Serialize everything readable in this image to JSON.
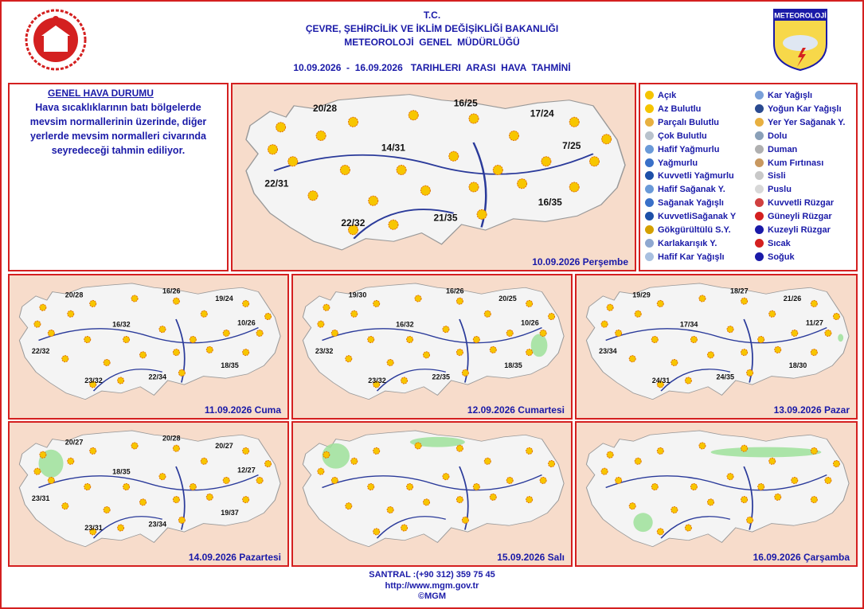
{
  "header": {
    "line1": "T.C.",
    "line2": "ÇEVRE, ŞEHİRCİLİK VE İKLİM DEĞİŞİKLİĞİ BAKANLIĞI",
    "line3": "METEOROLOJİ  GENEL  MÜDÜRLÜĞÜ",
    "period": "10.09.2026  -  16.09.2026   TARIHLERI  ARASI  HAVA  TAHMİNİ",
    "logo_text": "METEOROLOJİ"
  },
  "general": {
    "title": "GENEL HAVA DURUMU",
    "text": "Hava sıcaklıklarının batı bölgelerde mevsim normallerinin üzerinde, diğer yerlerde mevsim normalleri civarında seyredeceği tahmin ediliyor."
  },
  "legend": [
    "Açık",
    "Az Bulutlu",
    "Parçalı Bulutlu",
    "Çok Bulutlu",
    "Hafif Yağmurlu",
    "Yağmurlu",
    "Kuvvetli Yağmurlu",
    "Hafif Sağanak Y.",
    "Sağanak Yağışlı",
    "KuvvetliSağanak Y",
    "Gökgürültülü S.Y.",
    "Karlakarışık Y.",
    "Hafif Kar Yağışlı",
    "Kar Yağışlı",
    "Yoğun Kar Yağışlı",
    "Yer Yer Sağanak Y.",
    "Dolu",
    "Duman",
    "Kum Fırtınası",
    "Sisli",
    "Puslu",
    "Kuvvetli Rüzgar",
    "Güneyli Rüzgar",
    "Kuzeyli Rüzgar",
    "Sıcak",
    "Soğuk"
  ],
  "maps": [
    {
      "date": "10.09.2026 Perşembe",
      "temps": [
        "20/28",
        "16/25",
        "17/24",
        "14/31",
        "7/25",
        "22/31",
        "22/32",
        "21/35",
        "16/35"
      ]
    },
    {
      "date": "11.09.2026 Cuma",
      "temps": [
        "20/28",
        "16/26",
        "19/24",
        "16/32",
        "10/26",
        "22/32",
        "23/32",
        "22/34",
        "18/35"
      ]
    },
    {
      "date": "12.09.2026 Cumartesi",
      "temps": [
        "19/30",
        "16/26",
        "20/25",
        "16/32",
        "10/26",
        "23/32",
        "23/32",
        "22/35",
        "18/35"
      ]
    },
    {
      "date": "13.09.2026 Pazar",
      "temps": [
        "19/29",
        "18/27",
        "21/26",
        "17/34",
        "11/27",
        "23/34",
        "24/31",
        "24/35",
        "18/30"
      ]
    },
    {
      "date": "14.09.2026 Pazartesi",
      "temps": [
        "20/27",
        "20/28",
        "20/27",
        "18/35",
        "12/27",
        "23/31",
        "23/31",
        "23/34",
        "19/37"
      ]
    },
    {
      "date": "15.09.2026 Salı",
      "temps": []
    },
    {
      "date": "16.09.2026 Çarşamba",
      "temps": []
    }
  ],
  "footer": {
    "phone": "SANTRAL :(+90 312) 359 75 45",
    "url": "http://www.mgm.gov.tr",
    "copyright": "©MGM"
  }
}
